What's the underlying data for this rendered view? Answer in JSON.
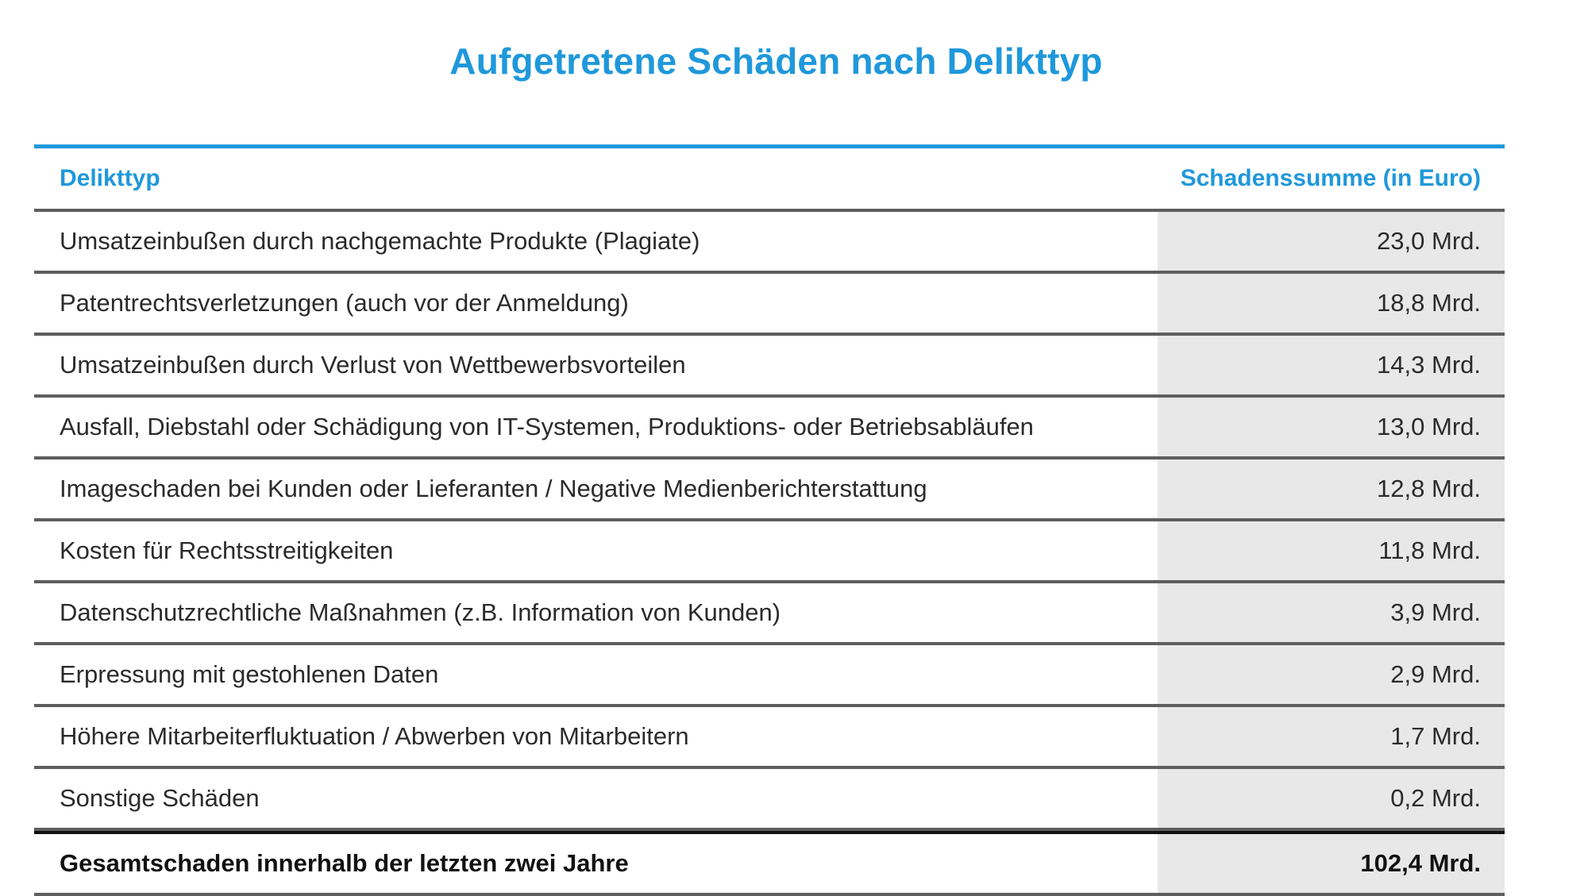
{
  "title": "Aufgetretene Schäden nach Delikttyp",
  "chart_data": {
    "type": "table",
    "title": "Aufgetretene Schäden nach Delikttyp",
    "columns": [
      "Delikttyp",
      "Schadenssumme (in Euro)"
    ],
    "rows": [
      {
        "label": "Umsatzeinbußen durch nachgemachte Produkte (Plagiate)",
        "value": 23.0,
        "display": "23,0 Mrd."
      },
      {
        "label": "Patentrechtsverletzungen (auch vor der Anmeldung)",
        "value": 18.8,
        "display": "18,8 Mrd."
      },
      {
        "label": "Umsatzeinbußen durch Verlust von Wettbewerbsvorteilen",
        "value": 14.3,
        "display": "14,3 Mrd."
      },
      {
        "label": "Ausfall, Diebstahl oder Schädigung von IT-Systemen, Produktions- oder Betriebsabläufen",
        "value": 13.0,
        "display": "13,0 Mrd."
      },
      {
        "label": "Imageschaden bei Kunden oder Lieferanten / Negative Medienberichterstattung",
        "value": 12.8,
        "display": "12,8 Mrd."
      },
      {
        "label": "Kosten für Rechtsstreitigkeiten",
        "value": 11.8,
        "display": "11,8 Mrd."
      },
      {
        "label": "Datenschutzrechtliche Maßnahmen (z.B. Information von Kunden)",
        "value": 3.9,
        "display": "3,9 Mrd."
      },
      {
        "label": "Erpressung mit gestohlenen Daten",
        "value": 2.9,
        "display": "2,9 Mrd."
      },
      {
        "label": "Höhere Mitarbeiterfluktuation / Abwerben von Mitarbeitern",
        "value": 1.7,
        "display": "1,7 Mrd."
      },
      {
        "label": "Sonstige Schäden",
        "value": 0.2,
        "display": "0,2 Mrd."
      }
    ],
    "total": {
      "label": "Gesamtschaden innerhalb der letzten zwei Jahre",
      "value": 102.4,
      "display": "102,4 Mrd."
    }
  },
  "colors": {
    "accent": "#1f98db",
    "value_cell_bg": "#e8e8e8",
    "rule": "#5e5e5e"
  }
}
